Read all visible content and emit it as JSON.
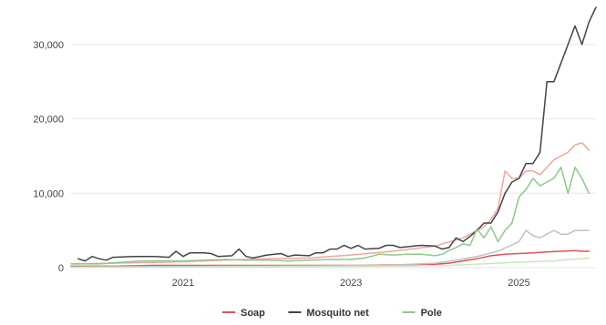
{
  "chart_data": {
    "type": "line",
    "title": "",
    "xlabel": "",
    "ylabel": "",
    "xlim": [
      "2019-09",
      "2025-12"
    ],
    "ylim": [
      0,
      35000
    ],
    "x_ticks": [
      {
        "label": "2021",
        "date": "2021-01"
      },
      {
        "label": "2023",
        "date": "2023-01"
      },
      {
        "label": "2025",
        "date": "2025-01"
      }
    ],
    "y_ticks": [
      {
        "label": "0",
        "value": 0
      },
      {
        "label": "10,000",
        "value": 10000
      },
      {
        "label": "20,000",
        "value": 20000
      },
      {
        "label": "30,000",
        "value": 30000
      }
    ],
    "grid": "horizontal",
    "legend": "bottom-center",
    "series": [
      {
        "name": "Soap",
        "color": "#e05353",
        "in_legend": true,
        "points": [
          [
            "2019-09",
            200
          ],
          [
            "2020-03",
            200
          ],
          [
            "2020-09",
            300
          ],
          [
            "2021-03",
            300
          ],
          [
            "2021-09",
            300
          ],
          [
            "2022-03",
            300
          ],
          [
            "2022-09",
            300
          ],
          [
            "2023-03",
            300
          ],
          [
            "2023-09",
            400
          ],
          [
            "2024-01",
            450
          ],
          [
            "2024-03",
            600
          ],
          [
            "2024-05",
            900
          ],
          [
            "2024-07",
            1200
          ],
          [
            "2024-09",
            1600
          ],
          [
            "2024-11",
            1800
          ],
          [
            "2025-01",
            1900
          ],
          [
            "2025-03",
            2000
          ],
          [
            "2025-05",
            2100
          ],
          [
            "2025-07",
            2200
          ],
          [
            "2025-09",
            2300
          ],
          [
            "2025-10",
            2200
          ],
          [
            "2025-11",
            2200
          ]
        ]
      },
      {
        "name": "",
        "color": "#f2a5a0",
        "in_legend": false,
        "points": [
          [
            "2019-09",
            500
          ],
          [
            "2020-03",
            600
          ],
          [
            "2020-09",
            700
          ],
          [
            "2021-01",
            800
          ],
          [
            "2021-07",
            1000
          ],
          [
            "2022-01",
            1200
          ],
          [
            "2022-07",
            1300
          ],
          [
            "2023-01",
            1700
          ],
          [
            "2023-07",
            2200
          ],
          [
            "2024-01",
            2900
          ],
          [
            "2024-05",
            4000
          ],
          [
            "2024-07",
            5000
          ],
          [
            "2024-08",
            5500
          ],
          [
            "2024-09",
            6500
          ],
          [
            "2024-10",
            8000
          ],
          [
            "2024-11",
            13000
          ],
          [
            "2024-12",
            12000
          ],
          [
            "2025-01",
            12000
          ],
          [
            "2025-02",
            13000
          ],
          [
            "2025-03",
            13000
          ],
          [
            "2025-04",
            12500
          ],
          [
            "2025-05",
            13500
          ],
          [
            "2025-06",
            14500
          ],
          [
            "2025-07",
            15000
          ],
          [
            "2025-08",
            15500
          ],
          [
            "2025-09",
            16500
          ],
          [
            "2025-10",
            16800
          ],
          [
            "2025-11",
            15800
          ]
        ]
      },
      {
        "name": "Mosquito net",
        "color": "#444444",
        "in_legend": true,
        "points": [
          [
            "2019-10",
            1200
          ],
          [
            "2019-11",
            900
          ],
          [
            "2019-12",
            1500
          ],
          [
            "2020-01",
            1200
          ],
          [
            "2020-02",
            1000
          ],
          [
            "2020-03",
            1400
          ],
          [
            "2020-06",
            1500
          ],
          [
            "2020-09",
            1500
          ],
          [
            "2020-11",
            1400
          ],
          [
            "2020-12",
            2200
          ],
          [
            "2021-01",
            1500
          ],
          [
            "2021-02",
            2000
          ],
          [
            "2021-04",
            2000
          ],
          [
            "2021-05",
            1900
          ],
          [
            "2021-06",
            1500
          ],
          [
            "2021-08",
            1600
          ],
          [
            "2021-09",
            2500
          ],
          [
            "2021-10",
            1500
          ],
          [
            "2021-11",
            1300
          ],
          [
            "2022-01",
            1700
          ],
          [
            "2022-03",
            1900
          ],
          [
            "2022-04",
            1500
          ],
          [
            "2022-05",
            1700
          ],
          [
            "2022-07",
            1600
          ],
          [
            "2022-08",
            2000
          ],
          [
            "2022-09",
            2000
          ],
          [
            "2022-10",
            2500
          ],
          [
            "2022-11",
            2500
          ],
          [
            "2022-12",
            3000
          ],
          [
            "2023-01",
            2600
          ],
          [
            "2023-02",
            3000
          ],
          [
            "2023-03",
            2500
          ],
          [
            "2023-05",
            2600
          ],
          [
            "2023-06",
            3000
          ],
          [
            "2023-07",
            3000
          ],
          [
            "2023-08",
            2700
          ],
          [
            "2023-10",
            2900
          ],
          [
            "2023-11",
            3000
          ],
          [
            "2024-01",
            2900
          ],
          [
            "2024-02",
            2500
          ],
          [
            "2024-03",
            2700
          ],
          [
            "2024-04",
            4000
          ],
          [
            "2024-05",
            3500
          ],
          [
            "2024-06",
            4200
          ],
          [
            "2024-07",
            5000
          ],
          [
            "2024-08",
            6000
          ],
          [
            "2024-09",
            6000
          ],
          [
            "2024-10",
            7500
          ],
          [
            "2024-11",
            10000
          ],
          [
            "2024-12",
            11500
          ],
          [
            "2025-01",
            12000
          ],
          [
            "2025-02",
            14000
          ],
          [
            "2025-03",
            14000
          ],
          [
            "2025-04",
            15500
          ],
          [
            "2025-05",
            25000
          ],
          [
            "2025-06",
            25000
          ],
          [
            "2025-07",
            27500
          ],
          [
            "2025-08",
            30000
          ],
          [
            "2025-09",
            32500
          ],
          [
            "2025-10",
            30000
          ],
          [
            "2025-11",
            33000
          ],
          [
            "2025-12",
            35000
          ]
        ]
      },
      {
        "name": "Pole",
        "color": "#8dc98a",
        "in_legend": true,
        "points": [
          [
            "2019-09",
            500
          ],
          [
            "2020-01",
            500
          ],
          [
            "2020-04",
            700
          ],
          [
            "2020-07",
            900
          ],
          [
            "2020-10",
            900
          ],
          [
            "2021-01",
            900
          ],
          [
            "2021-04",
            1000
          ],
          [
            "2021-07",
            1100
          ],
          [
            "2021-10",
            1000
          ],
          [
            "2022-01",
            1000
          ],
          [
            "2022-04",
            900
          ],
          [
            "2022-07",
            1000
          ],
          [
            "2022-10",
            1100
          ],
          [
            "2023-01",
            1100
          ],
          [
            "2023-03",
            1300
          ],
          [
            "2023-05",
            1800
          ],
          [
            "2023-07",
            1700
          ],
          [
            "2023-09",
            1800
          ],
          [
            "2023-11",
            1800
          ],
          [
            "2024-01",
            1600
          ],
          [
            "2024-02",
            1800
          ],
          [
            "2024-03",
            2300
          ],
          [
            "2024-04",
            2700
          ],
          [
            "2024-05",
            3200
          ],
          [
            "2024-06",
            3000
          ],
          [
            "2024-07",
            5200
          ],
          [
            "2024-08",
            4000
          ],
          [
            "2024-09",
            5500
          ],
          [
            "2024-10",
            3500
          ],
          [
            "2024-11",
            5000
          ],
          [
            "2024-12",
            6000
          ],
          [
            "2025-01",
            9500
          ],
          [
            "2025-02",
            10500
          ],
          [
            "2025-03",
            12000
          ],
          [
            "2025-04",
            11000
          ],
          [
            "2025-05",
            11500
          ],
          [
            "2025-06",
            12000
          ],
          [
            "2025-07",
            13500
          ],
          [
            "2025-08",
            10000
          ],
          [
            "2025-09",
            13500
          ],
          [
            "2025-10",
            12000
          ],
          [
            "2025-11",
            10000
          ]
        ]
      },
      {
        "name": "",
        "color": "#c2c2c2",
        "in_legend": false,
        "points": [
          [
            "2019-09",
            100
          ],
          [
            "2020-09",
            150
          ],
          [
            "2021-09",
            200
          ],
          [
            "2022-09",
            250
          ],
          [
            "2023-06",
            300
          ],
          [
            "2024-01",
            600
          ],
          [
            "2024-04",
            1000
          ],
          [
            "2024-07",
            1500
          ],
          [
            "2024-10",
            2200
          ],
          [
            "2025-01",
            3500
          ],
          [
            "2025-02",
            5000
          ],
          [
            "2025-03",
            4300
          ],
          [
            "2025-04",
            4000
          ],
          [
            "2025-05",
            4500
          ],
          [
            "2025-06",
            5000
          ],
          [
            "2025-07",
            4500
          ],
          [
            "2025-08",
            4500
          ],
          [
            "2025-09",
            5000
          ],
          [
            "2025-10",
            5000
          ],
          [
            "2025-11",
            5000
          ]
        ]
      },
      {
        "name": "",
        "color": "#c9e6c3",
        "in_legend": false,
        "points": [
          [
            "2019-09",
            50
          ],
          [
            "2021-01",
            100
          ],
          [
            "2022-06",
            150
          ],
          [
            "2023-06",
            200
          ],
          [
            "2024-03",
            300
          ],
          [
            "2024-08",
            500
          ],
          [
            "2024-12",
            700
          ],
          [
            "2025-03",
            800
          ],
          [
            "2025-06",
            900
          ],
          [
            "2025-08",
            1100
          ],
          [
            "2025-10",
            1200
          ],
          [
            "2025-11",
            1300
          ]
        ]
      }
    ]
  }
}
